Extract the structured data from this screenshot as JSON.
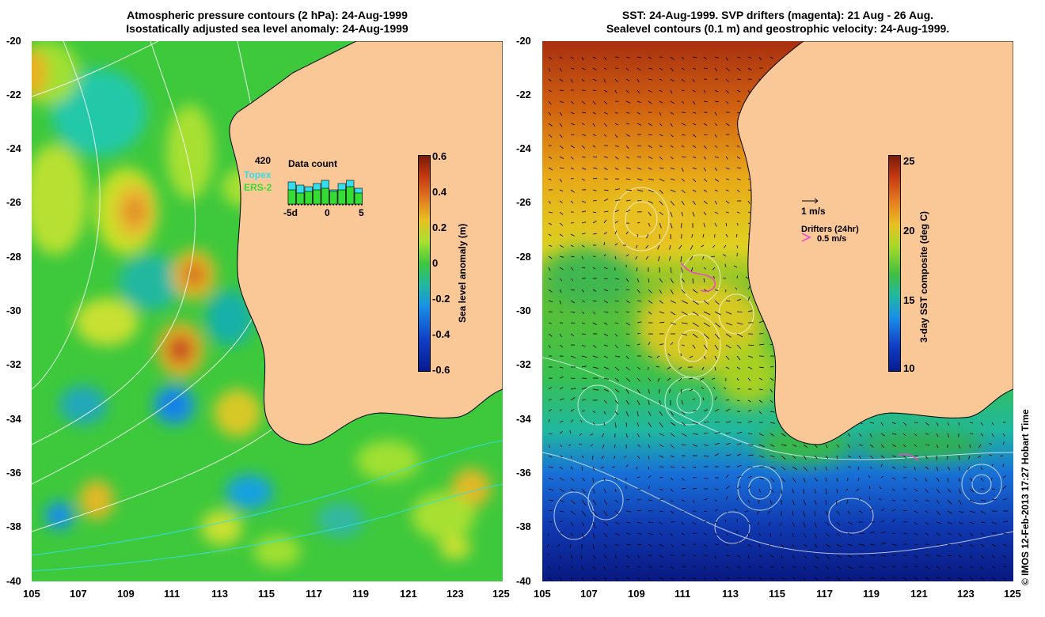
{
  "left_panel": {
    "title_line1": "Atmospheric pressure contours (2 hPa): 24-Aug-1999",
    "title_line2": "Isostatically adjusted sea level anomaly: 24-Aug-1999",
    "colorbar": {
      "label": "Sea level anomaly (m)",
      "ticks": [
        "0.6",
        "0.4",
        "0.2",
        "0",
        "-0.2",
        "-0.4",
        "-0.6"
      ]
    },
    "data_count": {
      "title": "Data count",
      "max_label": "420",
      "topex_label": "Topex",
      "ers2_label": "ERS-2",
      "x_ticks": [
        "-5d",
        "0",
        "5"
      ],
      "topex_color": "#33ddee",
      "ers2_color": "#33dd33"
    }
  },
  "right_panel": {
    "title_line1": "SST: 24-Aug-1999. SVP drifters (magenta): 21 Aug - 26 Aug.",
    "title_line2": "Sealevel contours (0.1 m) and geostrophic velocity: 24-Aug-1999.",
    "colorbar": {
      "label": "3-day SST composite (deg C)",
      "ticks": [
        "25",
        "20",
        "15",
        "10"
      ]
    },
    "velocity_scale": "1 m/s",
    "drifters_title": "Drifters (24hr)",
    "drifters_scale": "0.5 m/s",
    "drifter_color": "#ee44cc"
  },
  "axes": {
    "lat_ticks": [
      "-20",
      "-22",
      "-24",
      "-26",
      "-28",
      "-30",
      "-32",
      "-34",
      "-36",
      "-38",
      "-40"
    ],
    "lon_ticks": [
      "105",
      "107",
      "109",
      "111",
      "113",
      "115",
      "117",
      "119",
      "121",
      "123",
      "125"
    ]
  },
  "land_color": "#f9c896",
  "credit": "© IMOS 12-Feb-2013 17:27 Hobart Time"
}
